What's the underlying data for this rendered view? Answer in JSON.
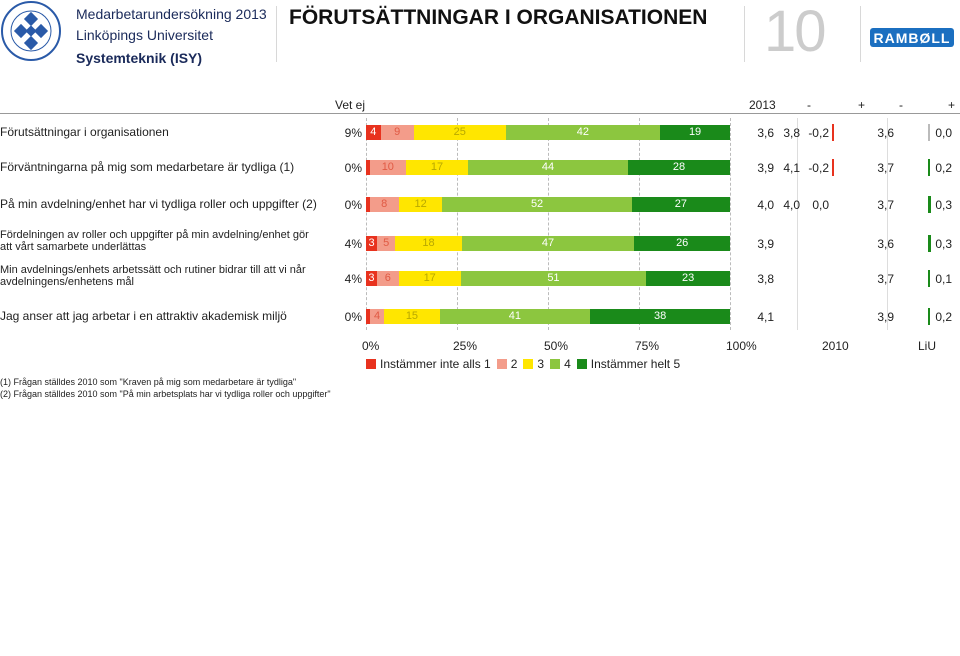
{
  "header": {
    "survey": "Medarbetarundersökning 2013",
    "university": "Linköpings Universitet",
    "department": "Systemteknik (ISY)",
    "title": "FÖRUTSÄTTNINGAR I ORGANISATIONEN",
    "page_number": "10",
    "logo_text": "RAMBØLL"
  },
  "columns": {
    "vetej": "Vet ej",
    "year": "2013",
    "minus1": "-",
    "plus1": "+",
    "minus2": "-",
    "plus2": "+"
  },
  "colors": [
    "#e8321e",
    "#f39c8a",
    "#ffe600",
    "#8cc63f",
    "#1a8a1a"
  ],
  "chart_data": {
    "type": "bar",
    "stacked": true,
    "orientation": "horizontal",
    "xlim": [
      0,
      100
    ],
    "xticks": [
      "0%",
      "25%",
      "50%",
      "75%",
      "100%"
    ],
    "grid": true,
    "legend_position": "bottom",
    "legend": [
      "Instämmer inte alls 1",
      "2",
      "3",
      "4",
      "Instämmer helt 5"
    ],
    "rows": [
      {
        "label": "Förutsättningar i organisationen",
        "vetej": "9%",
        "values": [
          4,
          9,
          25,
          42,
          19
        ],
        "labels": [
          "4",
          "9",
          "25",
          "42",
          "19"
        ],
        "mean_2013": "3,6",
        "mean_2010": "3,8",
        "diff_2010": "-0,2",
        "diff_2010_val": -0.2,
        "mean_liu": "3,6",
        "diff_liu": "0,0",
        "diff_liu_val": 0.0
      },
      {
        "label": "Förväntningarna på mig som medarbetare är tydliga (1)",
        "vetej": "0%",
        "values": [
          1,
          10,
          17,
          44,
          28
        ],
        "labels": [
          "",
          "10",
          "17",
          "44",
          "28"
        ],
        "mean_2013": "3,9",
        "mean_2010": "4,1",
        "diff_2010": "-0,2",
        "diff_2010_val": -0.2,
        "mean_liu": "3,7",
        "diff_liu": "0,2",
        "diff_liu_val": 0.2
      },
      {
        "label": "På min avdelning/enhet har vi tydliga roller och uppgifter (2)",
        "vetej": "0%",
        "values": [
          1,
          8,
          12,
          52,
          27
        ],
        "labels": [
          "",
          "8",
          "12",
          "52",
          "27"
        ],
        "mean_2013": "4,0",
        "mean_2010": "4,0",
        "diff_2010": "0,0",
        "diff_2010_val": 0.0,
        "mean_liu": "3,7",
        "diff_liu": "0,3",
        "diff_liu_val": 0.3
      },
      {
        "label": "Fördelningen av roller och uppgifter på min avdelning/enhet gör att vårt samarbete underlättas",
        "vetej": "4%",
        "values": [
          3,
          5,
          18,
          47,
          26
        ],
        "labels": [
          "3",
          "5",
          "18",
          "47",
          "26"
        ],
        "mean_2013": "3,9",
        "mean_2010": "",
        "diff_2010": "",
        "diff_2010_val": null,
        "mean_liu": "3,6",
        "diff_liu": "0,3",
        "diff_liu_val": 0.3
      },
      {
        "label": "Min avdelnings/enhets arbetssätt och rutiner bidrar till att vi når avdelningens/enhetens mål",
        "vetej": "4%",
        "values": [
          3,
          6,
          17,
          51,
          23
        ],
        "labels": [
          "3",
          "6",
          "17",
          "51",
          "23"
        ],
        "mean_2013": "3,8",
        "mean_2010": "",
        "diff_2010": "",
        "diff_2010_val": null,
        "mean_liu": "3,7",
        "diff_liu": "0,1",
        "diff_liu_val": 0.1
      },
      {
        "label": "Jag anser att jag arbetar i en attraktiv akademisk miljö",
        "vetej": "0%",
        "values": [
          1,
          4,
          15,
          41,
          38
        ],
        "labels": [
          "",
          "4",
          "15",
          "41",
          "38"
        ],
        "mean_2013": "4,1",
        "mean_2010": "",
        "diff_2010": "",
        "diff_2010_val": null,
        "mean_liu": "3,9",
        "diff_liu": "0,2",
        "diff_liu_val": 0.2
      }
    ]
  },
  "bottom_labels": {
    "col2010": "2010",
    "colliu": "LiU"
  },
  "footnotes": [
    "(1) Frågan ställdes 2010 som \"Kraven på mig som medarbetare är tydliga\"",
    "(2) Frågan ställdes 2010 som \"På min arbetsplats har vi tydliga roller och uppgifter\""
  ]
}
